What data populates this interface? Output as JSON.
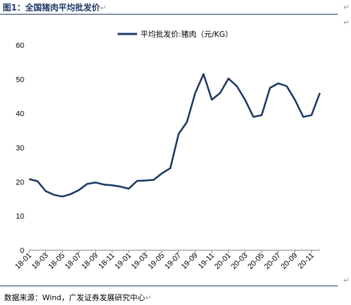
{
  "header": {
    "title": "图1：全国猪肉平均批发价",
    "para_mark": "↵"
  },
  "footer": {
    "source": "数据来源：Wind，广发证券发展研究中心",
    "para_mark": "↵"
  },
  "side_marks": [
    "↵",
    "↵",
    "↵"
  ],
  "chart_data": {
    "type": "line",
    "title": "",
    "xlabel": "",
    "ylabel": "",
    "ylim": [
      0,
      60
    ],
    "yticks": [
      0,
      10,
      20,
      30,
      40,
      50,
      60
    ],
    "grid": false,
    "legend_position": "top-center",
    "line_color": "#1f3864",
    "x_tick_labels": [
      "18-01",
      "18-03",
      "18-05",
      "18-07",
      "18-09",
      "18-11",
      "19-01",
      "19-03",
      "19-05",
      "19-07",
      "19-09",
      "19-11",
      "20-01",
      "20-03",
      "20-05",
      "20-07",
      "20-09",
      "20-11"
    ],
    "series": [
      {
        "name": "平均批发价:猪肉（元/KG）",
        "x": [
          "2018-01",
          "2018-02",
          "2018-03",
          "2018-04",
          "2018-05",
          "2018-06",
          "2018-07",
          "2018-08",
          "2018-09",
          "2018-10",
          "2018-11",
          "2018-12",
          "2019-01",
          "2019-02",
          "2019-03",
          "2019-04",
          "2019-05",
          "2019-06",
          "2019-07",
          "2019-08",
          "2019-09",
          "2019-10",
          "2019-11",
          "2019-12",
          "2020-01",
          "2020-02",
          "2020-03",
          "2020-04",
          "2020-05",
          "2020-06",
          "2020-07",
          "2020-08",
          "2020-09",
          "2020-10",
          "2020-11",
          "2020-12"
        ],
        "values": [
          20.8,
          20.2,
          17.3,
          16.2,
          15.7,
          16.4,
          17.6,
          19.4,
          19.8,
          19.2,
          19.0,
          18.6,
          18.0,
          20.3,
          20.4,
          20.6,
          22.5,
          24.0,
          34.0,
          37.5,
          46.0,
          51.5,
          44.0,
          46.0,
          50.2,
          48.0,
          44.0,
          39.0,
          39.5,
          47.5,
          48.8,
          48.0,
          44.0,
          39.0,
          39.5,
          46.0
        ]
      }
    ]
  }
}
